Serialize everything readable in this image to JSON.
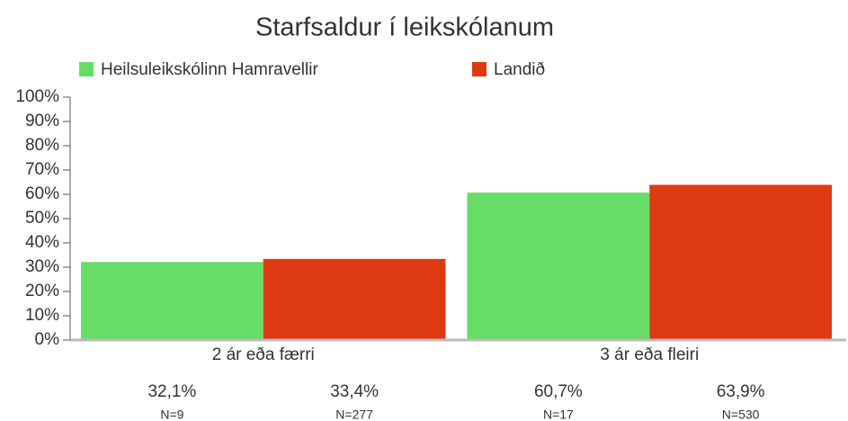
{
  "chart_data": {
    "type": "bar",
    "title": "Starfsaldur í leikskólanum",
    "categories": [
      "2 ár eða færri",
      "3 ár eða fleiri"
    ],
    "series": [
      {
        "name": "Heilsuleikskólinn Hamravellir",
        "color": "#66dd66",
        "values": [
          32.1,
          60.7
        ],
        "value_labels": [
          "32,1%",
          "60,7%"
        ],
        "n_labels": [
          "N=9",
          "N=17"
        ]
      },
      {
        "name": "Landið",
        "color": "#dd3a11",
        "values": [
          33.4,
          63.9
        ],
        "value_labels": [
          "33,4%",
          "63,9%"
        ],
        "n_labels": [
          "N=277",
          "N=530"
        ]
      }
    ],
    "ylim": [
      0,
      100
    ],
    "yticks": [
      {
        "value": 0,
        "label": "0%"
      },
      {
        "value": 10,
        "label": "10%"
      },
      {
        "value": 20,
        "label": "20%"
      },
      {
        "value": 30,
        "label": "30%"
      },
      {
        "value": 40,
        "label": "40%"
      },
      {
        "value": 50,
        "label": "50%"
      },
      {
        "value": 60,
        "label": "60%"
      },
      {
        "value": 70,
        "label": "70%"
      },
      {
        "value": 80,
        "label": "80%"
      },
      {
        "value": 90,
        "label": "90%"
      },
      {
        "value": 100,
        "label": "100%"
      }
    ],
    "legend": "top",
    "grid": false
  }
}
